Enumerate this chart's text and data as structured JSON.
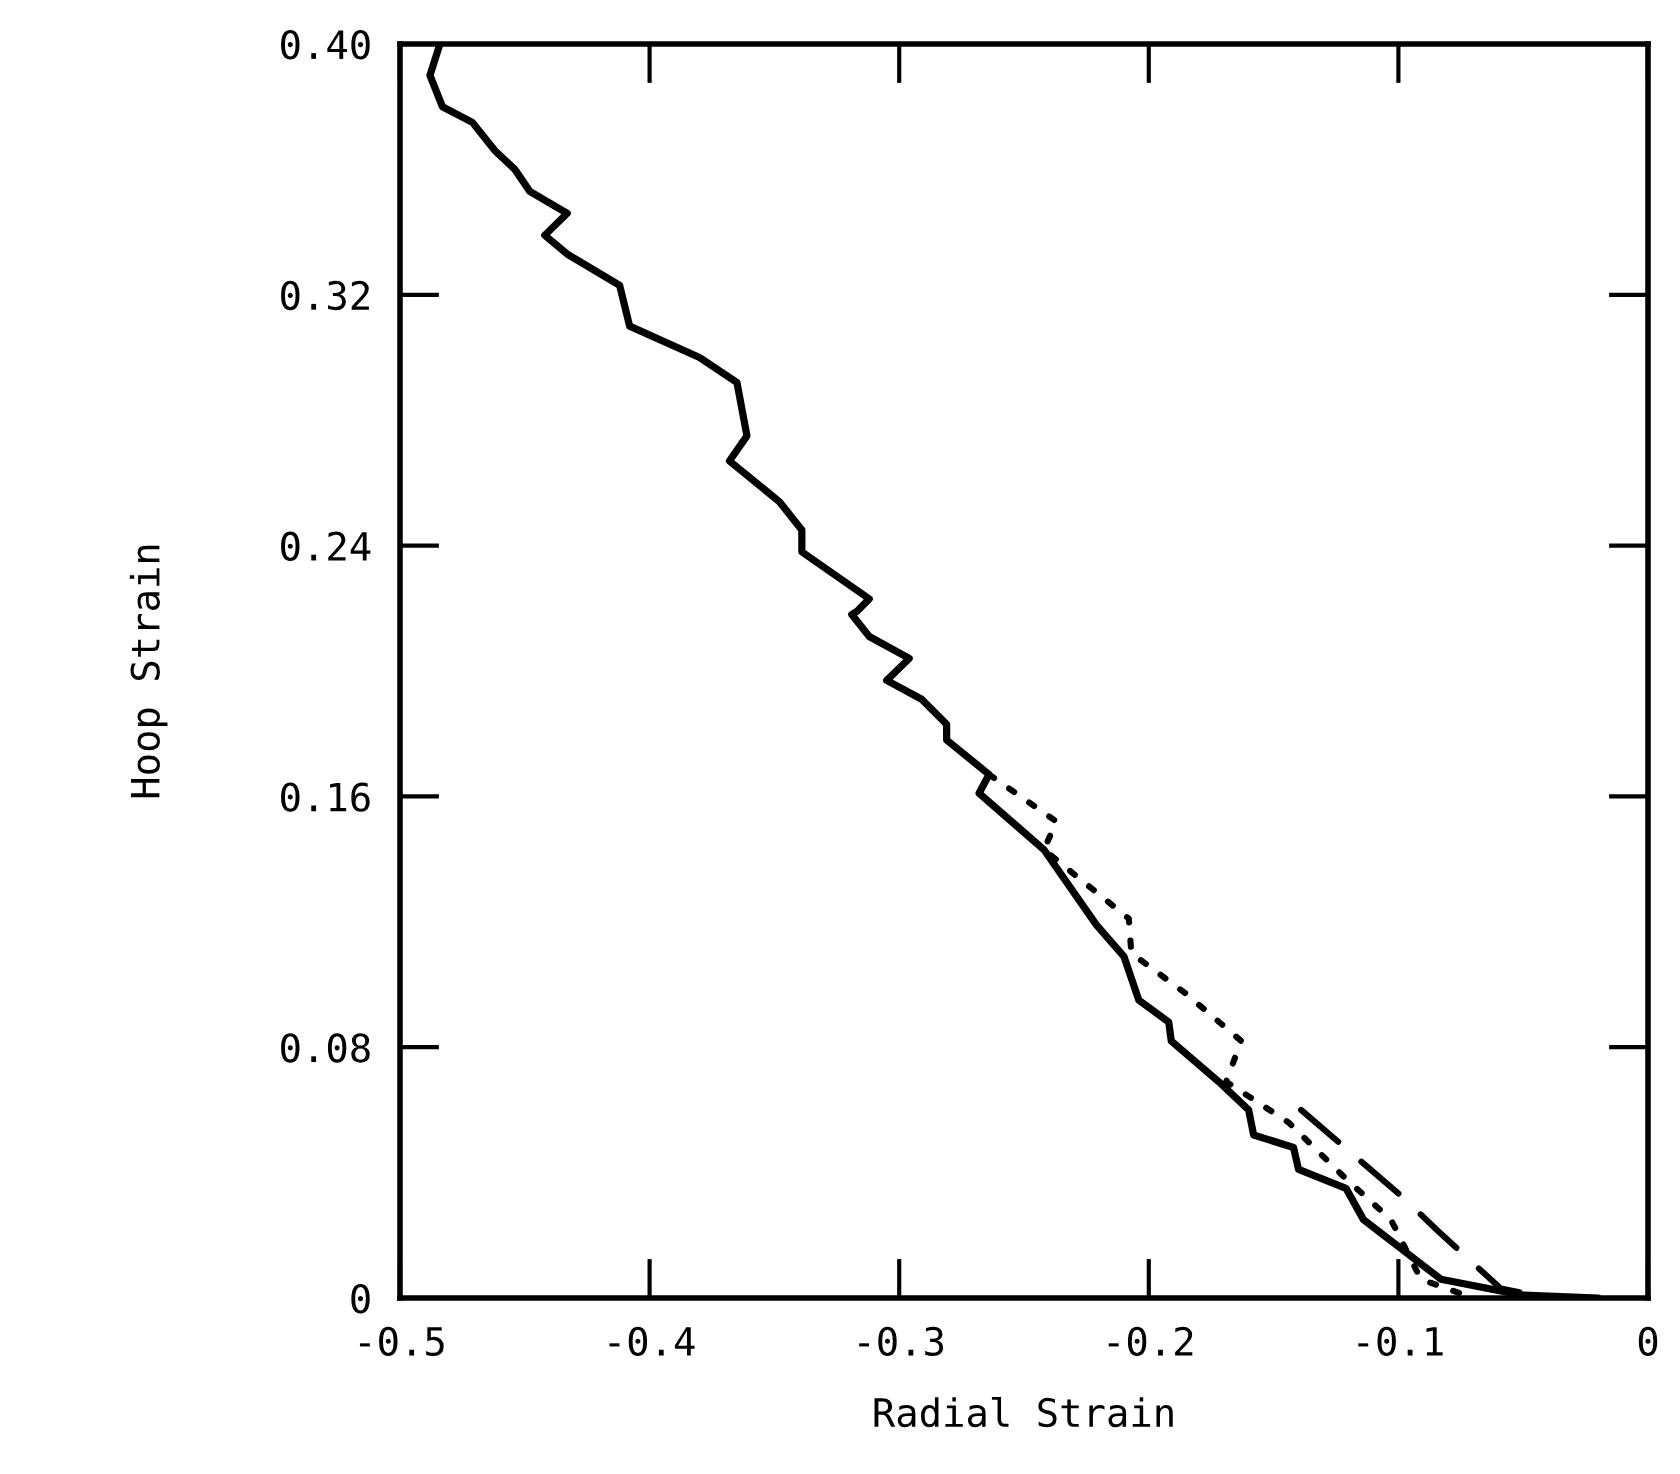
{
  "chart_data": {
    "type": "line",
    "xlabel": "Radial Strain",
    "ylabel": "Hoop Strain",
    "xlim": [
      -0.5,
      0
    ],
    "ylim": [
      0,
      0.4
    ],
    "xticks": [
      -0.5,
      -0.4,
      -0.3,
      -0.2,
      -0.1,
      0
    ],
    "yticks": [
      0,
      0.08,
      0.16,
      0.24,
      0.32,
      {
        "value": 0.4,
        "label": "0.40"
      }
    ],
    "grid": false,
    "marker": "none",
    "series": [
      {
        "color": "#000000",
        "line_style": "solid",
        "x": [
          -0.484,
          -0.488,
          -0.483,
          -0.471,
          -0.462,
          -0.454,
          -0.448,
          -0.433,
          -0.442,
          -0.433,
          -0.412,
          -0.408,
          -0.38,
          -0.365,
          -0.361,
          -0.368,
          -0.348,
          -0.339,
          -0.339,
          -0.312,
          -0.317,
          -0.319,
          -0.312,
          -0.296,
          -0.305,
          -0.291,
          -0.281,
          -0.281,
          -0.264,
          -0.268,
          -0.242,
          -0.221,
          -0.21,
          -0.204,
          -0.192,
          -0.191,
          -0.172,
          -0.16,
          -0.158,
          -0.142,
          -0.14,
          -0.121,
          -0.114,
          -0.083,
          -0.051,
          -0.02
        ],
        "values": [
          0.4,
          0.39,
          0.38,
          0.375,
          0.366,
          0.36,
          0.353,
          0.346,
          0.339,
          0.333,
          0.323,
          0.31,
          0.3,
          0.292,
          0.275,
          0.267,
          0.254,
          0.245,
          0.238,
          0.223,
          0.219,
          0.218,
          0.211,
          0.204,
          0.197,
          0.191,
          0.183,
          0.178,
          0.167,
          0.161,
          0.143,
          0.119,
          0.109,
          0.095,
          0.088,
          0.082,
          0.069,
          0.06,
          0.052,
          0.048,
          0.041,
          0.035,
          0.025,
          0.006,
          0.001,
          0
        ]
      },
      {
        "color": "#000000",
        "line_style": "dotted",
        "x": [
          -0.264,
          -0.237,
          -0.242,
          -0.208,
          -0.207,
          -0.185,
          -0.163,
          -0.169,
          -0.144,
          -0.121,
          -0.103,
          -0.091,
          -0.07
        ],
        "values": [
          0.167,
          0.152,
          0.143,
          0.121,
          0.11,
          0.097,
          0.082,
          0.069,
          0.056,
          0.038,
          0.025,
          0.006,
          0
        ]
      },
      {
        "color": "#000000",
        "line_style": "dashed",
        "x": [
          -0.139,
          -0.098,
          -0.085,
          -0.059,
          -0.04
        ],
        "values": [
          0.06,
          0.032,
          0.022,
          0.003,
          0
        ]
      }
    ]
  }
}
